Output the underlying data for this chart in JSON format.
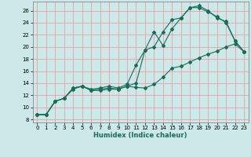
{
  "xlabel": "Humidex (Indice chaleur)",
  "xlim": [
    -0.5,
    23.5
  ],
  "ylim": [
    7.5,
    27.5
  ],
  "yticks": [
    8,
    10,
    12,
    14,
    16,
    18,
    20,
    22,
    24,
    26
  ],
  "xticks": [
    0,
    1,
    2,
    3,
    4,
    5,
    6,
    7,
    8,
    9,
    10,
    11,
    12,
    13,
    14,
    15,
    16,
    17,
    18,
    19,
    20,
    21,
    22,
    23
  ],
  "bg_color": "#cce8e8",
  "grid_color": "#e8a0a0",
  "line_color": "#1a6b5a",
  "line1_x": [
    0,
    1,
    2,
    3,
    4,
    5,
    6,
    7,
    8,
    9,
    10,
    11,
    12,
    13,
    14,
    15,
    16,
    17,
    18,
    19,
    20,
    21,
    22,
    23
  ],
  "line1_y": [
    8.8,
    8.8,
    11.0,
    11.5,
    13.2,
    13.5,
    12.8,
    13.0,
    13.2,
    13.0,
    13.5,
    13.3,
    13.2,
    13.8,
    15.0,
    16.5,
    16.8,
    17.5,
    18.2,
    18.8,
    19.3,
    20.0,
    20.5,
    19.2
  ],
  "line2_x": [
    0,
    1,
    2,
    3,
    4,
    5,
    6,
    7,
    8,
    9,
    10,
    11,
    12,
    13,
    14,
    15,
    16,
    17,
    18,
    19,
    20,
    21,
    22,
    23
  ],
  "line2_y": [
    8.8,
    8.8,
    11.0,
    11.5,
    13.2,
    13.5,
    13.0,
    13.2,
    13.5,
    13.2,
    13.8,
    17.0,
    19.5,
    22.5,
    20.2,
    23.0,
    24.8,
    26.5,
    26.8,
    26.0,
    24.8,
    24.2,
    21.0,
    19.2
  ],
  "line3_x": [
    0,
    1,
    2,
    3,
    4,
    5,
    6,
    7,
    8,
    9,
    10,
    11,
    12,
    13,
    14,
    15,
    16,
    17,
    18,
    19,
    20,
    21,
    22,
    23
  ],
  "line3_y": [
    8.8,
    8.8,
    11.0,
    11.5,
    13.0,
    13.5,
    12.8,
    12.8,
    13.0,
    13.0,
    13.5,
    14.0,
    19.5,
    20.0,
    22.5,
    24.5,
    24.8,
    26.5,
    26.5,
    25.8,
    25.0,
    24.0,
    21.0,
    19.2
  ]
}
